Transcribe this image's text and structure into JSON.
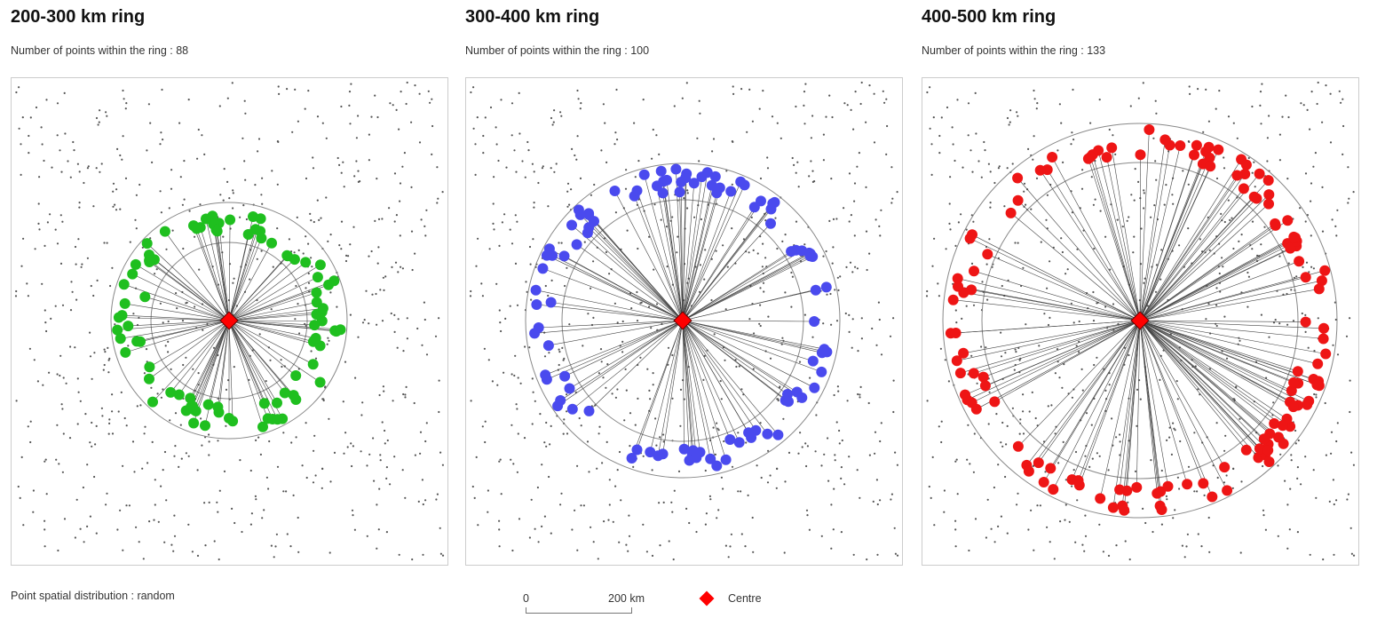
{
  "panels": [
    {
      "title": "200-300 km ring",
      "count_label": "Number of points within the ring : 88",
      "count": 88,
      "color": "#1fbf1f"
    },
    {
      "title": "300-400 km ring",
      "count_label": "Number of points within the ring : 100",
      "count": 100,
      "color": "#4a4aee"
    },
    {
      "title": "400-500 km ring",
      "count_label": "Number of points within the ring : 133",
      "count": 133,
      "color": "#ee1515"
    }
  ],
  "distribution_label": "Point spatial distribution : random",
  "scale": {
    "zero": "0",
    "end": "200 km"
  },
  "legend": {
    "centre_label": "Centre",
    "centre_color": "#ff0000"
  }
}
